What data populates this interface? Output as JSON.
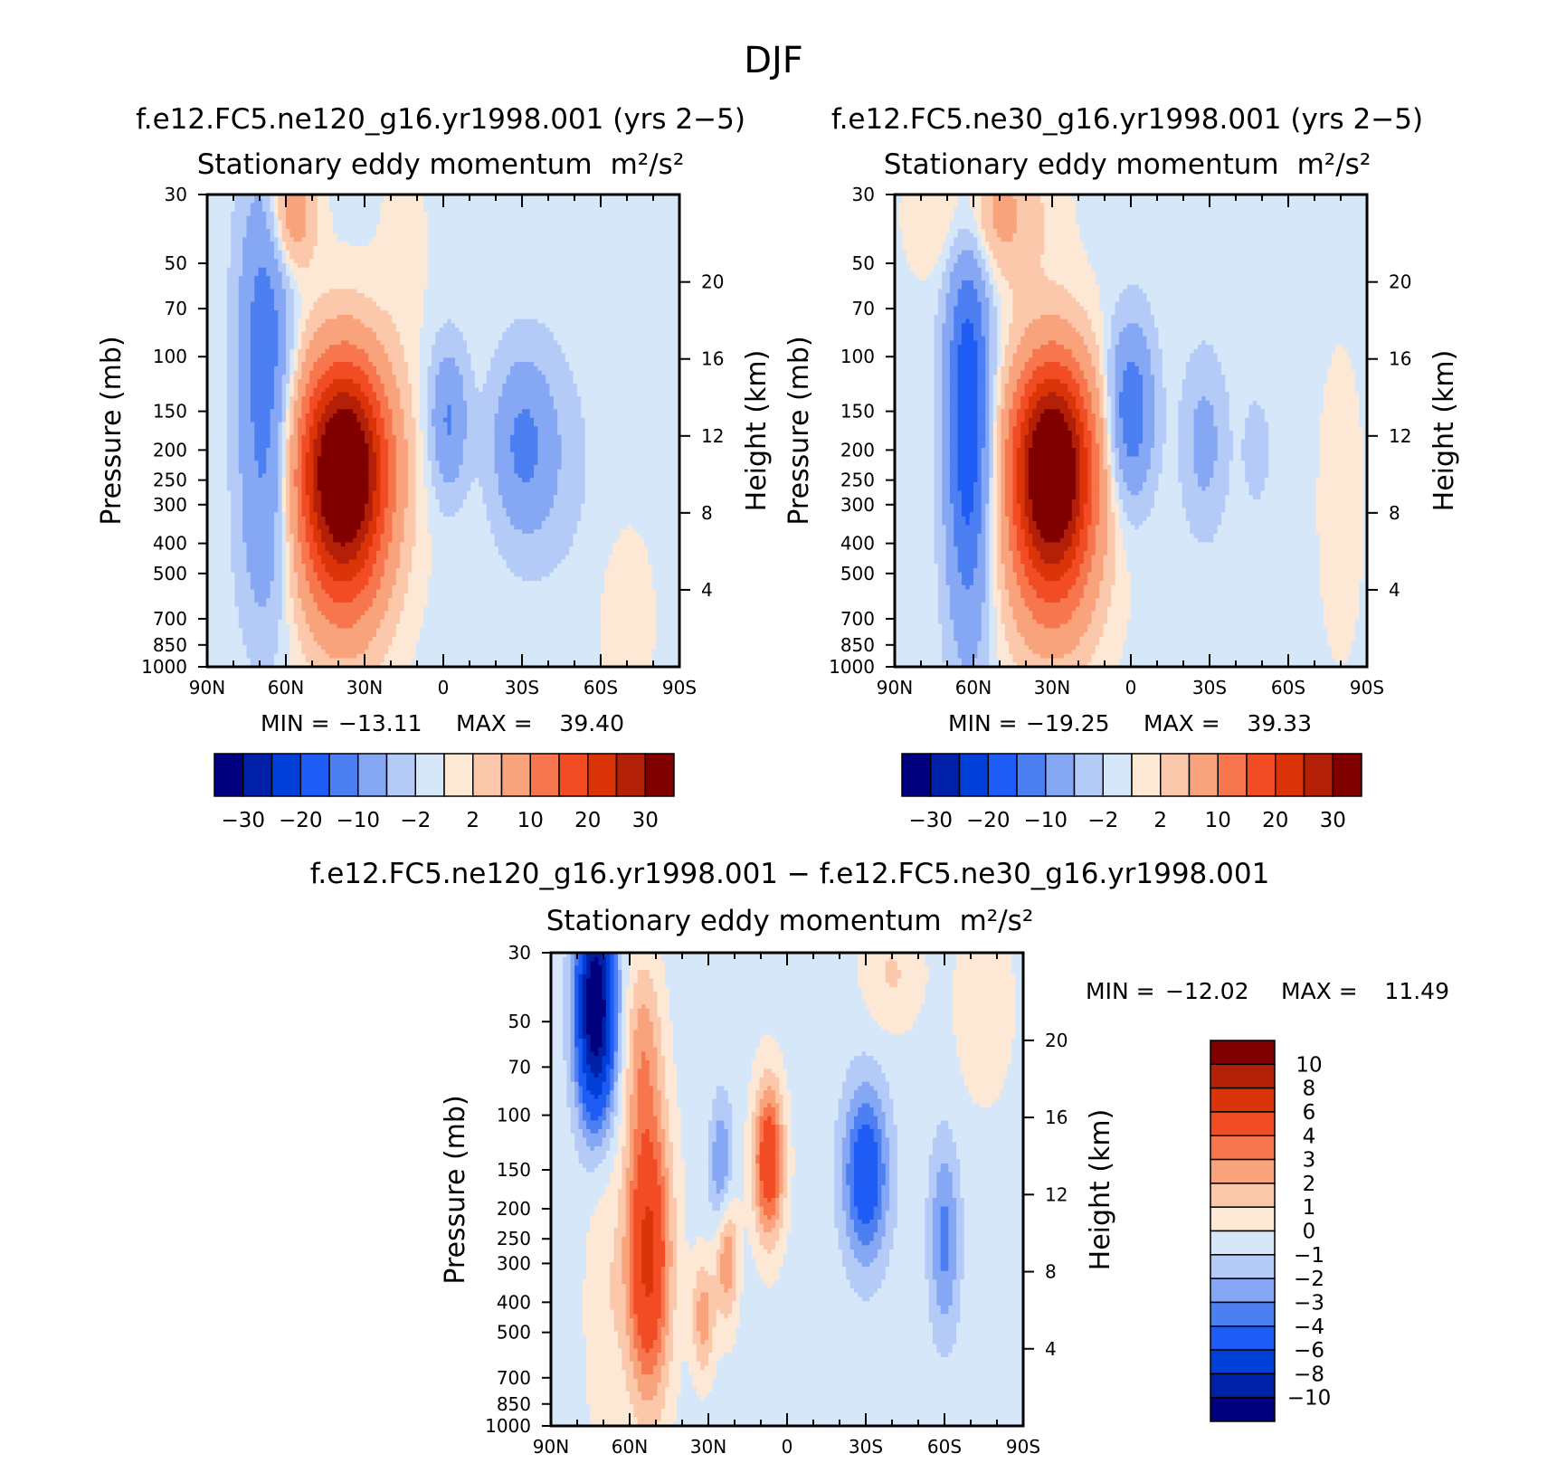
{
  "figure": {
    "season": "DJF",
    "variable_label": "Stationary eddy momentum",
    "units_label": "m²/s²"
  },
  "panels": [
    {
      "case": "f.e12.FC5.ne120_g16.yr1998.001 (yrs 2−5)",
      "subtitle": "Stationary eddy momentum",
      "units": "m²/s²",
      "min_label": "MIN =",
      "min_value": "−13.11",
      "max_label": "MAX =",
      "max_value": "39.40"
    },
    {
      "case": "f.e12.FC5.ne30_g16.yr1998.001 (yrs 2−5)",
      "subtitle": "Stationary eddy momentum",
      "units": "m²/s²",
      "min_label": "MIN =",
      "min_value": "−19.25",
      "max_label": "MAX =",
      "max_value": "39.33"
    },
    {
      "case": "f.e12.FC5.ne120_g16.yr1998.001 − f.e12.FC5.ne30_g16.yr1998.001",
      "subtitle": "Stationary eddy momentum",
      "units": "m²/s²",
      "min_label": "MIN =",
      "min_value": "−12.02",
      "max_label": "MAX =",
      "max_value": "11.49"
    }
  ],
  "colors": {
    "scale": [
      "#00007f",
      "#0020a8",
      "#0040d8",
      "#1f5cf5",
      "#4c7ff2",
      "#86a8f4",
      "#b4cbf7",
      "#d7e7fa",
      "#fde8d5",
      "#fcc8ab",
      "#f9a37c",
      "#f7764d",
      "#f24c24",
      "#dc3409",
      "#b41f08",
      "#800000"
    ]
  },
  "chart_data": [
    {
      "type": "heatmap",
      "name": "ne120 stationary eddy momentum",
      "xlabel": "",
      "ylabel": "Pressure (mb)",
      "ylabel_right": "Height (km)",
      "x_ticks": [
        "90N",
        "60N",
        "30N",
        "0",
        "30S",
        "60S",
        "90S"
      ],
      "x_range": [
        90,
        -90
      ],
      "y_ticks": [
        30,
        50,
        70,
        100,
        150,
        200,
        250,
        300,
        400,
        500,
        700,
        850,
        1000
      ],
      "y_range": [
        30,
        1000
      ],
      "y_scale": "log",
      "height_ticks": [
        4,
        8,
        12,
        16,
        20
      ],
      "colorbar_levels": [
        -35,
        -30,
        -25,
        -20,
        -15,
        -10,
        -5,
        -2,
        0,
        2,
        5,
        10,
        15,
        20,
        25,
        30
      ],
      "colorbar_labels": [
        "−30",
        "−20",
        "−10",
        "−2",
        "2",
        "10",
        "20",
        "30"
      ],
      "min": -13.11,
      "max": 39.4,
      "features": [
        {
          "lat": 38,
          "p": 220,
          "value": 39.4,
          "sigma_lat": 12,
          "sigma_lnp": 0.55
        },
        {
          "lat": 38,
          "p": 500,
          "value": 10,
          "sigma_lat": 12,
          "sigma_lnp": 0.5
        },
        {
          "lat": 58,
          "p": 35,
          "value": 10,
          "sigma_lat": 6,
          "sigma_lnp": 0.3
        },
        {
          "lat": 68,
          "p": 95,
          "value": -13.11,
          "sigma_lat": 7,
          "sigma_lnp": 0.9
        },
        {
          "lat": 68,
          "p": 400,
          "value": -5,
          "sigma_lat": 7,
          "sigma_lnp": 0.6
        },
        {
          "lat": -2,
          "p": 160,
          "value": -10,
          "sigma_lat": 5,
          "sigma_lnp": 0.38
        },
        {
          "lat": -30,
          "p": 190,
          "value": -9,
          "sigma_lat": 8,
          "sigma_lnp": 0.45
        },
        {
          "lat": -40,
          "p": 220,
          "value": -3,
          "sigma_lat": 12,
          "sigma_lnp": 0.6
        },
        {
          "lat": 15,
          "p": 45,
          "value": 1.5,
          "sigma_lat": 6,
          "sigma_lnp": 0.5
        },
        {
          "lat": -70,
          "p": 700,
          "value": 2.5,
          "sigma_lat": 6,
          "sigma_lnp": 0.4
        }
      ],
      "background": -0.5
    },
    {
      "type": "heatmap",
      "name": "ne30 stationary eddy momentum",
      "xlabel": "",
      "ylabel": "Pressure (mb)",
      "ylabel_right": "Height (km)",
      "x_ticks": [
        "90N",
        "60N",
        "30N",
        "0",
        "30S",
        "60S",
        "90S"
      ],
      "x_range": [
        90,
        -90
      ],
      "y_ticks": [
        30,
        50,
        70,
        100,
        150,
        200,
        250,
        300,
        400,
        500,
        700,
        850,
        1000
      ],
      "y_range": [
        30,
        1000
      ],
      "y_scale": "log",
      "height_ticks": [
        4,
        8,
        12,
        16,
        20
      ],
      "colorbar_levels": [
        -35,
        -30,
        -25,
        -20,
        -15,
        -10,
        -5,
        -2,
        0,
        2,
        5,
        10,
        15,
        20,
        25,
        30
      ],
      "colorbar_labels": [
        "−30",
        "−20",
        "−10",
        "−2",
        "2",
        "10",
        "20",
        "30"
      ],
      "min": -19.25,
      "max": 39.33,
      "features": [
        {
          "lat": 30,
          "p": 220,
          "value": 39.33,
          "sigma_lat": 11,
          "sigma_lnp": 0.55
        },
        {
          "lat": 30,
          "p": 500,
          "value": 10,
          "sigma_lat": 12,
          "sigma_lnp": 0.5
        },
        {
          "lat": 55,
          "p": 35,
          "value": 8,
          "sigma_lat": 14,
          "sigma_lnp": 0.35
        },
        {
          "lat": 62,
          "p": 160,
          "value": -19.25,
          "sigma_lat": 6,
          "sigma_lnp": 1.1
        },
        {
          "lat": 0,
          "p": 150,
          "value": -14,
          "sigma_lat": 6,
          "sigma_lnp": 0.45
        },
        {
          "lat": -28,
          "p": 190,
          "value": -6,
          "sigma_lat": 6,
          "sigma_lnp": 0.45
        },
        {
          "lat": -48,
          "p": 200,
          "value": -3,
          "sigma_lat": 4,
          "sigma_lnp": 0.3
        },
        {
          "lat": -80,
          "p": 300,
          "value": 1.5,
          "sigma_lat": 6,
          "sigma_lnp": 0.8
        }
      ],
      "background": -0.5
    },
    {
      "type": "heatmap",
      "name": "ne120 minus ne30 difference",
      "xlabel": "",
      "ylabel": "Pressure (mb)",
      "ylabel_right": "Height (km)",
      "x_ticks": [
        "90N",
        "60N",
        "30N",
        "0",
        "30S",
        "60S",
        "90S"
      ],
      "x_range": [
        90,
        -90
      ],
      "y_ticks": [
        30,
        50,
        70,
        100,
        150,
        200,
        250,
        300,
        400,
        500,
        700,
        850,
        1000
      ],
      "y_range": [
        30,
        1000
      ],
      "y_scale": "log",
      "height_ticks": [
        4,
        8,
        12,
        16,
        20
      ],
      "colorbar_levels": [
        -12,
        -10,
        -8,
        -6,
        -4,
        -3,
        -2,
        -1,
        0,
        1,
        2,
        3,
        4,
        6,
        8,
        10
      ],
      "colorbar_labels": [
        "10",
        "8",
        "6",
        "4",
        "3",
        "2",
        "1",
        "0",
        "−1",
        "−2",
        "−3",
        "−4",
        "−6",
        "−8",
        "−10"
      ],
      "min": -12.02,
      "max": 11.49,
      "features": [
        {
          "lat": 73,
          "p": 45,
          "value": -12.02,
          "sigma_lat": 5,
          "sigma_lnp": 0.55
        },
        {
          "lat": 53,
          "p": 280,
          "value": 7,
          "sigma_lat": 6,
          "sigma_lnp": 0.75
        },
        {
          "lat": 55,
          "p": 60,
          "value": 2.5,
          "sigma_lat": 5,
          "sigma_lnp": 0.5
        },
        {
          "lat": 23,
          "p": 280,
          "value": 3.5,
          "sigma_lat": 3,
          "sigma_lnp": 0.35
        },
        {
          "lat": 32,
          "p": 450,
          "value": 3,
          "sigma_lat": 3,
          "sigma_lnp": 0.3
        },
        {
          "lat": 25,
          "p": 150,
          "value": -3,
          "sigma_lat": 3,
          "sigma_lnp": 0.35
        },
        {
          "lat": 7,
          "p": 140,
          "value": 6,
          "sigma_lat": 4,
          "sigma_lnp": 0.4
        },
        {
          "lat": -30,
          "p": 155,
          "value": -5,
          "sigma_lat": 6,
          "sigma_lnp": 0.45
        },
        {
          "lat": -60,
          "p": 250,
          "value": -3,
          "sigma_lat": 4,
          "sigma_lnp": 0.5
        },
        {
          "lat": 70,
          "p": 400,
          "value": 1.2,
          "sigma_lat": 5,
          "sigma_lnp": 0.8
        },
        {
          "lat": -40,
          "p": 35,
          "value": 1.5,
          "sigma_lat": 8,
          "sigma_lnp": 0.3
        },
        {
          "lat": -75,
          "p": 45,
          "value": 1.2,
          "sigma_lat": 8,
          "sigma_lnp": 0.5
        }
      ],
      "background": -0.4
    }
  ]
}
